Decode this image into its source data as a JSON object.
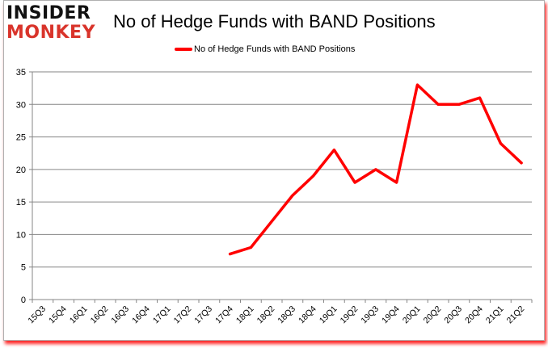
{
  "logo": {
    "line1": "INSIDER",
    "line2": "MONKEY"
  },
  "title": "No of Hedge Funds with BAND Positions",
  "legend": {
    "label": "No of Hedge Funds with BAND Positions",
    "color": "#ff0000"
  },
  "chart_data": {
    "type": "line",
    "title": "No of Hedge Funds with BAND Positions",
    "xlabel": "",
    "ylabel": "",
    "ylim": [
      0,
      35
    ],
    "yticks": [
      0,
      5,
      10,
      15,
      20,
      25,
      30,
      35
    ],
    "grid": true,
    "legend_position": "top",
    "categories": [
      "15Q3",
      "15Q4",
      "16Q1",
      "16Q2",
      "16Q3",
      "16Q4",
      "17Q1",
      "17Q2",
      "17Q3",
      "17Q4",
      "18Q1",
      "18Q2",
      "18Q3",
      "18Q4",
      "19Q1",
      "19Q2",
      "19Q3",
      "19Q4",
      "20Q1",
      "20Q2",
      "20Q3",
      "20Q4",
      "21Q1",
      "21Q2"
    ],
    "series": [
      {
        "name": "No of Hedge Funds with BAND Positions",
        "color": "#ff0000",
        "values": [
          null,
          null,
          null,
          null,
          null,
          null,
          null,
          null,
          null,
          7,
          8,
          12,
          16,
          19,
          23,
          18,
          20,
          18,
          33,
          30,
          30,
          31,
          24,
          21
        ]
      }
    ]
  }
}
